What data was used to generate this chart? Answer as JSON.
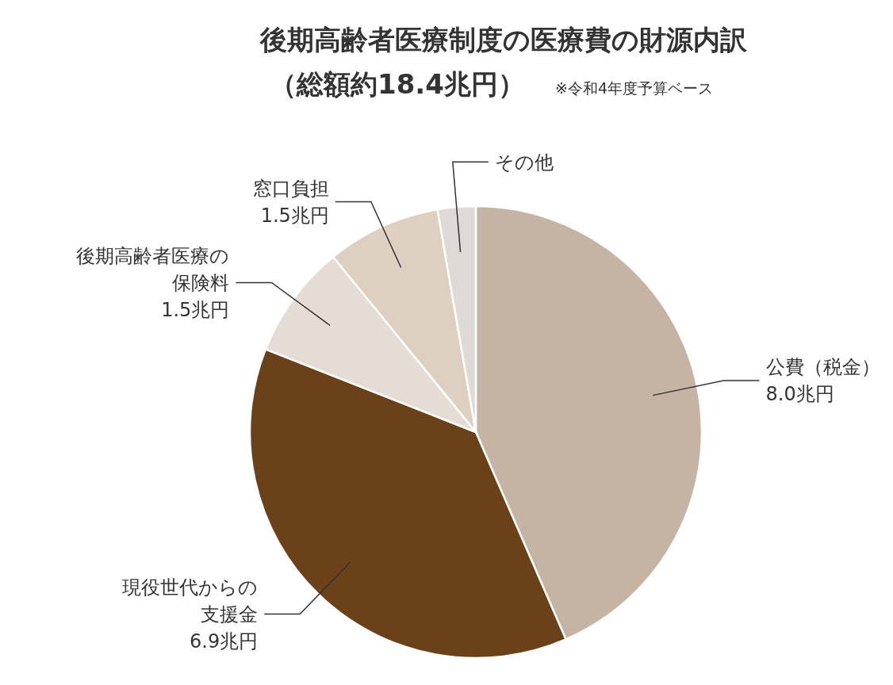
{
  "chart_data": {
    "type": "pie",
    "title": "後期高齢者医療制度の医療費の財源内訳",
    "subtitle": "（総額約18.4兆円）",
    "annotations": [
      "※令和4年度予算ベース"
    ],
    "categories": [
      "公費（税金）",
      "現役世代からの支援金",
      "後期高齢者医療の保険料",
      "窓口負担",
      "その他"
    ],
    "values": [
      8.0,
      6.9,
      1.5,
      1.5,
      0.5
    ],
    "value_labels": [
      "8.0兆円",
      "6.9兆円",
      "1.5兆円",
      "1.5兆円",
      null
    ],
    "colors": [
      "#c5b3a3",
      "#6b4119",
      "#e5ddd5",
      "#ddd0c0",
      "#dedad6"
    ]
  }
}
